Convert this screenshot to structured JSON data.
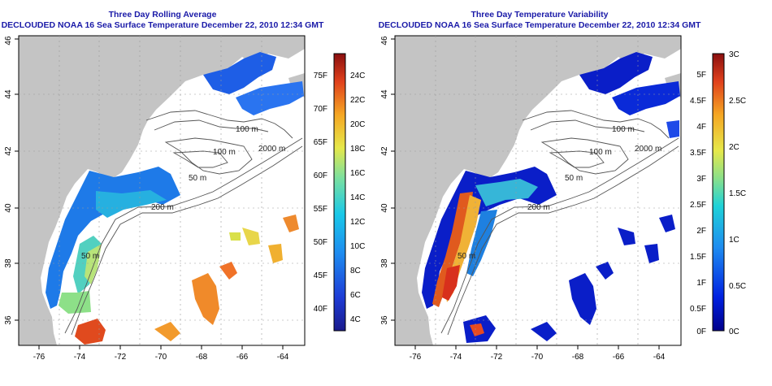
{
  "colors": {
    "title": "#1a1aa8",
    "land": "#c4c4c4",
    "no_data": "#ffffff",
    "contour": "#555555"
  },
  "left_panel": {
    "title_line1": "Three Day Rolling Average",
    "title_line2": "DECLOUDED NOAA 16 Sea Surface Temperature December 22, 2010 12:34 GMT",
    "x_ticks": [
      "-76",
      "-74",
      "-72",
      "-70",
      "-68",
      "-66",
      "-64"
    ],
    "y_ticks": [
      "36",
      "38",
      "40",
      "42",
      "44",
      "46"
    ],
    "contour_labels": [
      "100 m",
      "100 m",
      "50 m",
      "2000 m",
      "200 m",
      "50 m"
    ],
    "colorbar": {
      "left_labels": [
        "75F",
        "70F",
        "65F",
        "60F",
        "55F",
        "50F",
        "45F",
        "40F"
      ],
      "right_labels": [
        "24C",
        "22C",
        "20C",
        "18C",
        "16C",
        "14C",
        "12C",
        "10C",
        "8C",
        "6C",
        "4C"
      ]
    }
  },
  "right_panel": {
    "title_line1": "Three Day Temperature Variability",
    "title_line2": "DECLOUDED NOAA 16 Sea Surface Temperature December 22, 2010 12:34 GMT",
    "x_ticks": [
      "-76",
      "-74",
      "-72",
      "-70",
      "-68",
      "-66",
      "-64"
    ],
    "y_ticks": [
      "36",
      "38",
      "40",
      "42",
      "44",
      "46"
    ],
    "contour_labels": [
      "100 m",
      "100 m",
      "50 m",
      "2000 m",
      "200 m",
      "50 m"
    ],
    "colorbar": {
      "left_labels": [
        "5F",
        "4.5F",
        "4F",
        "3.5F",
        "3F",
        "2.5F",
        "2F",
        "1.5F",
        "1F",
        "0.5F",
        "0F"
      ],
      "right_labels": [
        "3C",
        "2.5C",
        "2C",
        "1.5C",
        "1C",
        "0.5C",
        "0C"
      ]
    }
  }
}
